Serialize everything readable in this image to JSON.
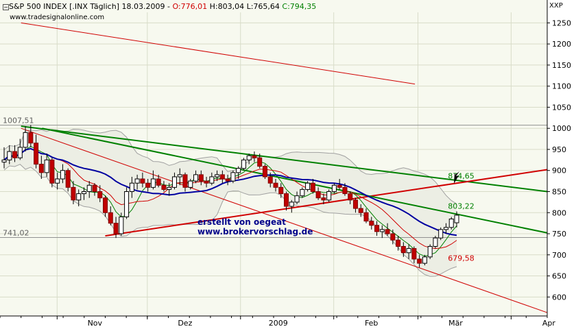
{
  "header": {
    "symbol": "S&P 500 INDEX [.INX  Täglich]",
    "date": "18.03.2009",
    "open": "O:776,01",
    "high": "H:803,04",
    "low": "L:765,64",
    "close": "C:794,35",
    "open_color": "#d00000",
    "close_color": "#008000"
  },
  "watermark": "www.tradesignalonline.com",
  "corner_label": "XXP",
  "credits": {
    "line1": "erstellt von oegeat",
    "line2": "www.brokervorschlag.de"
  },
  "chart_data": {
    "type": "candlestick",
    "y_axis_side": "right",
    "ylim": [
      555,
      1275
    ],
    "yticks": [
      600,
      650,
      700,
      750,
      800,
      850,
      900,
      950,
      1000,
      1050,
      1100,
      1150,
      1200,
      1250
    ],
    "xlim": [
      "2008-10-13",
      "2009-04-13"
    ],
    "xticks": [
      {
        "label": "Nov",
        "date": "2008-11-01"
      },
      {
        "label": "Dez",
        "date": "2008-12-01"
      },
      {
        "label": "2009",
        "date": "2009-01-01"
      },
      {
        "label": "Feb",
        "date": "2009-02-01"
      },
      {
        "label": "Mär",
        "date": "2009-03-01"
      },
      {
        "label": "Apr",
        "date": "2009-04-01"
      }
    ],
    "horizontal_levels": [
      {
        "label": "1007,51",
        "value": 1007.51
      },
      {
        "label": "741,02",
        "value": 741.02
      }
    ],
    "candles": [
      [
        920,
        955,
        905,
        925
      ],
      [
        925,
        960,
        915,
        945
      ],
      [
        945,
        960,
        920,
        930
      ],
      [
        930,
        975,
        925,
        955
      ],
      [
        955,
        1005,
        945,
        990
      ],
      [
        990,
        1008,
        955,
        965
      ],
      [
        965,
        985,
        905,
        915
      ],
      [
        915,
        935,
        880,
        895
      ],
      [
        895,
        940,
        885,
        925
      ],
      [
        925,
        930,
        860,
        870
      ],
      [
        870,
        895,
        855,
        880
      ],
      [
        880,
        915,
        870,
        900
      ],
      [
        900,
        905,
        850,
        860
      ],
      [
        860,
        875,
        820,
        830
      ],
      [
        830,
        855,
        815,
        845
      ],
      [
        845,
        860,
        830,
        850
      ],
      [
        850,
        875,
        835,
        865
      ],
      [
        865,
        870,
        840,
        850
      ],
      [
        850,
        865,
        825,
        835
      ],
      [
        835,
        840,
        790,
        800
      ],
      [
        800,
        815,
        770,
        775
      ],
      [
        775,
        790,
        740,
        750
      ],
      [
        750,
        800,
        745,
        790
      ],
      [
        790,
        860,
        785,
        850
      ],
      [
        850,
        885,
        835,
        870
      ],
      [
        870,
        890,
        855,
        880
      ],
      [
        880,
        895,
        860,
        870
      ],
      [
        870,
        880,
        850,
        860
      ],
      [
        860,
        900,
        855,
        880
      ],
      [
        880,
        890,
        860,
        865
      ],
      [
        865,
        875,
        850,
        855
      ],
      [
        855,
        870,
        840,
        860
      ],
      [
        860,
        895,
        855,
        885
      ],
      [
        885,
        905,
        865,
        890
      ],
      [
        890,
        895,
        850,
        860
      ],
      [
        860,
        880,
        855,
        875
      ],
      [
        875,
        900,
        870,
        890
      ],
      [
        890,
        900,
        865,
        875
      ],
      [
        875,
        885,
        860,
        870
      ],
      [
        870,
        895,
        865,
        885
      ],
      [
        885,
        900,
        875,
        890
      ],
      [
        890,
        900,
        870,
        880
      ],
      [
        880,
        890,
        865,
        875
      ],
      [
        875,
        900,
        870,
        895
      ],
      [
        895,
        910,
        880,
        905
      ],
      [
        905,
        930,
        900,
        925
      ],
      [
        925,
        940,
        915,
        935
      ],
      [
        935,
        945,
        920,
        930
      ],
      [
        930,
        940,
        905,
        910
      ],
      [
        910,
        915,
        880,
        885
      ],
      [
        885,
        895,
        860,
        870
      ],
      [
        870,
        880,
        850,
        860
      ],
      [
        860,
        870,
        835,
        845
      ],
      [
        845,
        850,
        805,
        815
      ],
      [
        815,
        830,
        800,
        825
      ],
      [
        825,
        850,
        820,
        840
      ],
      [
        840,
        860,
        835,
        855
      ],
      [
        855,
        875,
        850,
        870
      ],
      [
        870,
        880,
        845,
        850
      ],
      [
        850,
        860,
        830,
        835
      ],
      [
        835,
        845,
        820,
        830
      ],
      [
        830,
        855,
        825,
        850
      ],
      [
        850,
        870,
        845,
        865
      ],
      [
        865,
        880,
        855,
        860
      ],
      [
        860,
        870,
        840,
        845
      ],
      [
        845,
        850,
        820,
        830
      ],
      [
        830,
        835,
        800,
        810
      ],
      [
        810,
        820,
        790,
        800
      ],
      [
        800,
        810,
        775,
        780
      ],
      [
        780,
        790,
        760,
        770
      ],
      [
        770,
        780,
        745,
        755
      ],
      [
        755,
        770,
        740,
        760
      ],
      [
        760,
        775,
        745,
        750
      ],
      [
        750,
        760,
        725,
        735
      ],
      [
        735,
        745,
        710,
        720
      ],
      [
        720,
        730,
        695,
        705
      ],
      [
        705,
        725,
        690,
        715
      ],
      [
        715,
        720,
        680,
        690
      ],
      [
        690,
        700,
        670,
        680
      ],
      [
        680,
        700,
        675,
        695
      ],
      [
        695,
        725,
        690,
        720
      ],
      [
        720,
        745,
        715,
        740
      ],
      [
        740,
        765,
        735,
        760
      ],
      [
        760,
        775,
        750,
        765
      ],
      [
        765,
        790,
        760,
        785
      ],
      [
        776,
        803,
        765,
        794
      ]
    ],
    "indicator_lines": [
      {
        "name": "",
        "color": "#0000a0"
      },
      {
        "name": "",
        "color": "#d00000"
      },
      {
        "name": "",
        "color": "#008000"
      },
      {
        "name": "",
        "color": "#a0a0a0"
      }
    ],
    "trendlines": [
      {
        "color": "#008000",
        "label": "874,65",
        "value": 874.65
      },
      {
        "color": "#008000",
        "label": "803,22",
        "value": 803.22
      },
      {
        "color": "#d00000",
        "label": "",
        "value": 870
      },
      {
        "color": "#d00000",
        "label": "679,58",
        "value": 679.58
      }
    ]
  }
}
